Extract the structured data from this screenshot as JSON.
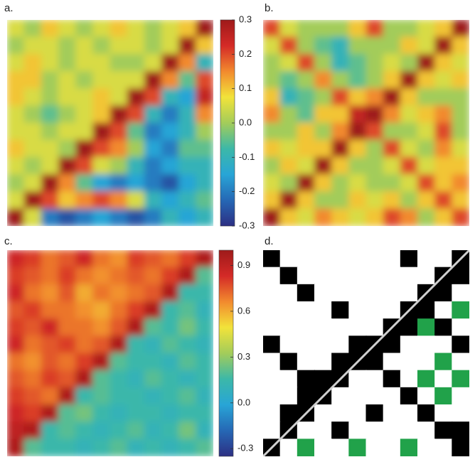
{
  "chart_data": [
    {
      "type": "heatmap",
      "title": "a.",
      "zlim": [
        -0.3,
        0.3
      ],
      "zticks": [
        0.3,
        0.2,
        0.1,
        0.0,
        -0.1,
        -0.2,
        -0.3
      ],
      "colormap": [
        "#2c2f83",
        "#2668b5",
        "#28a5d6",
        "#3cb8a8",
        "#a3cc5a",
        "#f2e33a",
        "#f28a2e",
        "#d42a27",
        "#9e1a1a"
      ],
      "z": [
        [
          0.05,
          0.0,
          0.1,
          0.05,
          0.0,
          0.05,
          0.1,
          0.05,
          0.0,
          0.05,
          0.1,
          0.3
        ],
        [
          0.0,
          0.05,
          0.05,
          0.0,
          0.05,
          0.0,
          0.05,
          0.05,
          0.0,
          0.05,
          0.3,
          0.1
        ],
        [
          0.05,
          0.1,
          0.05,
          0.0,
          0.05,
          0.05,
          0.0,
          0.0,
          0.05,
          0.3,
          0.15,
          -0.1
        ],
        [
          0.1,
          0.1,
          0.0,
          0.05,
          0.0,
          0.05,
          0.05,
          0.05,
          0.3,
          0.15,
          -0.05,
          0.2
        ],
        [
          0.1,
          0.05,
          0.0,
          0.05,
          0.05,
          0.1,
          0.05,
          0.3,
          0.2,
          -0.1,
          -0.15,
          0.25
        ],
        [
          0.05,
          0.0,
          -0.05,
          0.0,
          0.05,
          0.1,
          0.3,
          0.2,
          -0.1,
          -0.2,
          -0.1,
          0.15
        ],
        [
          0.05,
          0.05,
          0.0,
          0.05,
          0.05,
          0.3,
          0.2,
          -0.05,
          -0.2,
          -0.15,
          -0.1,
          0.0
        ],
        [
          0.1,
          0.05,
          0.05,
          0.0,
          0.3,
          0.2,
          0.15,
          0.0,
          -0.15,
          -0.2,
          -0.05,
          -0.05
        ],
        [
          0.05,
          0.0,
          0.05,
          0.3,
          0.2,
          0.05,
          0.0,
          -0.1,
          -0.2,
          -0.15,
          -0.1,
          -0.1
        ],
        [
          0.0,
          0.05,
          0.3,
          0.15,
          -0.05,
          -0.15,
          -0.2,
          -0.15,
          -0.2,
          -0.25,
          -0.15,
          -0.1
        ],
        [
          0.05,
          0.3,
          0.2,
          0.1,
          0.15,
          0.2,
          0.15,
          0.05,
          -0.1,
          -0.15,
          -0.1,
          -0.05
        ],
        [
          0.3,
          0.05,
          -0.2,
          -0.25,
          -0.2,
          -0.15,
          -0.2,
          -0.25,
          -0.2,
          -0.1,
          -0.15,
          -0.1
        ]
      ]
    },
    {
      "type": "heatmap",
      "title": "b.",
      "zlim": [
        -0.3,
        0.3
      ],
      "colormap": [
        "#2c2f83",
        "#2668b5",
        "#28a5d6",
        "#3cb8a8",
        "#a3cc5a",
        "#f2e33a",
        "#f28a2e",
        "#d42a27",
        "#9e1a1a"
      ],
      "z": [
        [
          0.2,
          0.05,
          0.0,
          0.0,
          0.0,
          0.1,
          0.2,
          0.0,
          0.0,
          0.05,
          0.1,
          0.3
        ],
        [
          0.05,
          0.2,
          0.0,
          -0.05,
          -0.1,
          0.0,
          0.0,
          0.0,
          0.1,
          0.05,
          0.3,
          0.1
        ],
        [
          0.0,
          0.05,
          0.2,
          0.0,
          -0.1,
          -0.05,
          0.0,
          0.05,
          0.0,
          0.3,
          0.1,
          0.05
        ],
        [
          0.0,
          -0.05,
          0.0,
          0.15,
          0.0,
          -0.05,
          0.0,
          0.1,
          0.3,
          0.1,
          0.05,
          0.1
        ],
        [
          0.1,
          -0.1,
          -0.05,
          0.0,
          0.2,
          0.1,
          0.15,
          0.3,
          0.1,
          0.0,
          0.0,
          0.0
        ],
        [
          0.15,
          0.0,
          -0.05,
          0.1,
          0.1,
          0.25,
          0.3,
          0.15,
          0.05,
          0.1,
          0.15,
          0.0
        ],
        [
          0.0,
          0.0,
          0.1,
          0.0,
          0.15,
          0.3,
          0.2,
          0.0,
          0.0,
          0.05,
          0.2,
          0.0
        ],
        [
          0.1,
          0.05,
          0.1,
          0.1,
          0.3,
          0.1,
          0.0,
          0.2,
          0.05,
          0.0,
          0.15,
          0.05
        ],
        [
          0.0,
          0.1,
          0.05,
          0.3,
          0.1,
          0.0,
          0.0,
          0.05,
          0.2,
          0.05,
          0.1,
          0.1
        ],
        [
          0.05,
          0.0,
          0.3,
          0.1,
          0.0,
          0.05,
          0.0,
          0.0,
          0.05,
          0.2,
          0.1,
          0.15
        ],
        [
          0.1,
          0.3,
          0.1,
          0.0,
          0.0,
          0.1,
          0.05,
          0.1,
          0.0,
          0.1,
          0.2,
          0.1
        ],
        [
          0.3,
          0.1,
          0.05,
          0.15,
          0.1,
          0.05,
          0.1,
          0.2,
          0.15,
          0.0,
          0.1,
          0.2
        ]
      ]
    },
    {
      "type": "heatmap",
      "title": "c.",
      "zlim": [
        -0.35,
        1.0
      ],
      "zticks": [
        0.9,
        0.6,
        0.3,
        0.0,
        -0.3
      ],
      "colormap": [
        "#2c2f83",
        "#2668b5",
        "#28a5d6",
        "#3cb8a8",
        "#a3cc5a",
        "#f2e33a",
        "#f28a2e",
        "#d42a27",
        "#9e1a1a"
      ],
      "z": [
        [
          0.85,
          0.8,
          0.7,
          0.75,
          0.85,
          0.7,
          0.65,
          0.8,
          0.75,
          0.7,
          0.8,
          0.95
        ],
        [
          0.8,
          0.75,
          0.7,
          0.8,
          0.7,
          0.65,
          0.7,
          0.75,
          0.7,
          0.8,
          0.95,
          0.2
        ],
        [
          0.85,
          0.7,
          0.65,
          0.75,
          0.6,
          0.7,
          0.65,
          0.7,
          0.75,
          0.95,
          0.15,
          0.15
        ],
        [
          0.75,
          0.8,
          0.7,
          0.7,
          0.65,
          0.6,
          0.7,
          0.8,
          0.95,
          0.15,
          0.2,
          0.1
        ],
        [
          0.8,
          0.75,
          0.85,
          0.7,
          0.7,
          0.65,
          0.75,
          0.95,
          0.2,
          0.15,
          0.25,
          0.15
        ],
        [
          0.85,
          0.7,
          0.75,
          0.8,
          0.7,
          0.75,
          0.95,
          0.15,
          0.1,
          0.2,
          0.15,
          0.1
        ],
        [
          0.7,
          0.65,
          0.75,
          0.7,
          0.8,
          0.95,
          0.2,
          0.15,
          0.15,
          0.1,
          0.2,
          0.15
        ],
        [
          0.75,
          0.7,
          0.8,
          0.75,
          0.95,
          0.2,
          0.15,
          0.1,
          0.2,
          0.15,
          0.1,
          0.15
        ],
        [
          0.8,
          0.75,
          0.7,
          0.95,
          0.15,
          0.2,
          0.15,
          0.15,
          0.1,
          0.15,
          0.2,
          0.1
        ],
        [
          0.85,
          0.8,
          0.95,
          0.2,
          0.25,
          0.15,
          0.1,
          0.15,
          0.15,
          0.1,
          0.15,
          0.15
        ],
        [
          0.9,
          0.95,
          0.15,
          0.2,
          0.15,
          0.1,
          0.15,
          0.2,
          0.1,
          0.15,
          0.25,
          0.1
        ],
        [
          0.95,
          0.2,
          0.15,
          0.15,
          0.1,
          0.15,
          0.2,
          0.1,
          0.15,
          0.1,
          0.15,
          0.2
        ]
      ]
    },
    {
      "type": "categorical-map",
      "title": "d.",
      "colors": [
        "#ffffff",
        "#000000",
        "#21a24a"
      ],
      "z": [
        [
          1,
          0,
          0,
          0,
          0,
          0,
          0,
          0,
          1,
          0,
          0,
          1
        ],
        [
          0,
          1,
          0,
          0,
          0,
          0,
          0,
          0,
          0,
          0,
          1,
          1
        ],
        [
          0,
          0,
          1,
          0,
          0,
          0,
          0,
          0,
          0,
          1,
          1,
          0
        ],
        [
          0,
          0,
          0,
          0,
          1,
          0,
          0,
          0,
          1,
          1,
          0,
          2
        ],
        [
          0,
          0,
          0,
          0,
          0,
          0,
          0,
          1,
          1,
          2,
          1,
          0
        ],
        [
          1,
          0,
          0,
          0,
          0,
          1,
          1,
          1,
          0,
          0,
          0,
          1
        ],
        [
          0,
          1,
          0,
          0,
          1,
          1,
          1,
          0,
          0,
          0,
          2,
          0
        ],
        [
          0,
          0,
          1,
          1,
          1,
          0,
          0,
          1,
          0,
          2,
          0,
          2
        ],
        [
          0,
          0,
          1,
          1,
          0,
          0,
          0,
          0,
          1,
          0,
          2,
          0
        ],
        [
          0,
          1,
          1,
          0,
          0,
          0,
          1,
          0,
          0,
          1,
          0,
          0
        ],
        [
          0,
          1,
          0,
          0,
          1,
          0,
          0,
          0,
          0,
          0,
          1,
          1
        ],
        [
          1,
          0,
          2,
          0,
          0,
          2,
          0,
          0,
          2,
          0,
          0,
          1
        ]
      ]
    }
  ]
}
